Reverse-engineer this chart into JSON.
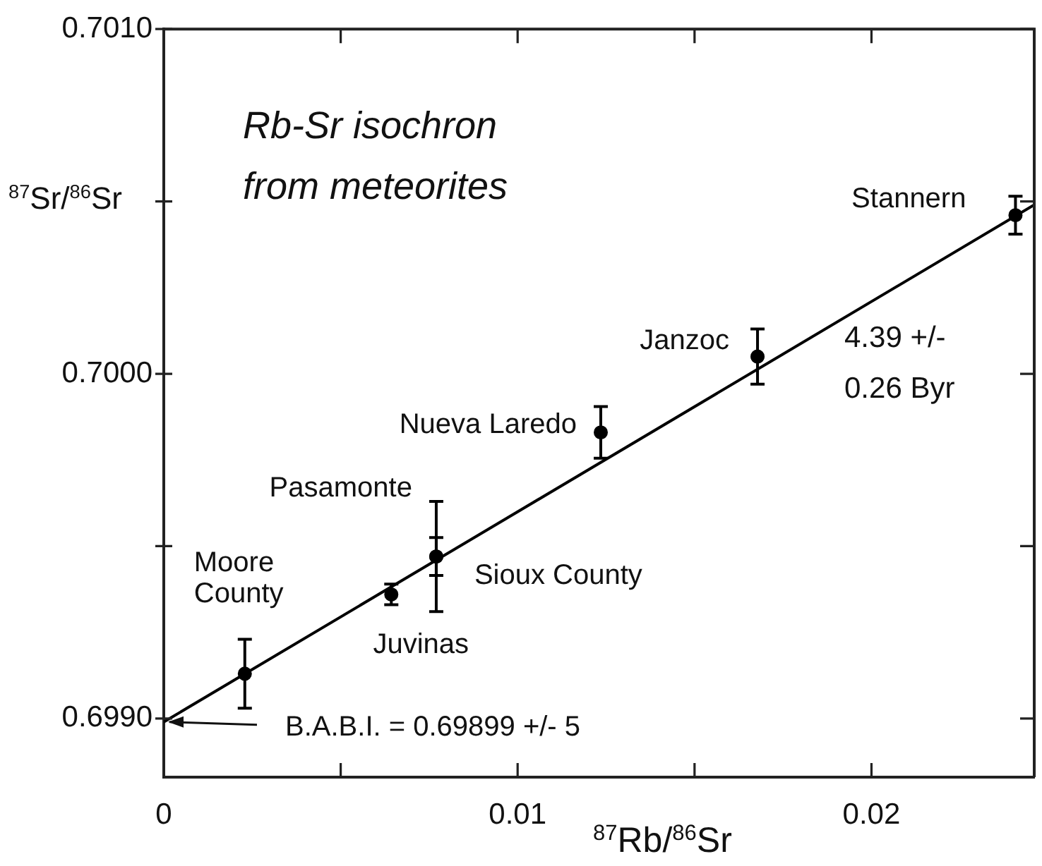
{
  "chart_data": {
    "type": "scatter",
    "title": "Rb-Sr isochron from meteorites",
    "xlabel": "$^{87}$Rb/$^{86}$Sr",
    "ylabel": "$^{87}$Sr/$^{86}$Sr",
    "xlim": [
      0,
      0.0246
    ],
    "ylim": [
      0.69883,
      0.701
    ],
    "xticks": [
      0,
      {
        "value": 0.005,
        "label": null
      },
      0.01,
      {
        "value": 0.015,
        "label": null
      },
      0.02
    ],
    "yticks": [
      {
        "value": 0.699,
        "label": "0.6990"
      },
      {
        "value": 0.6995,
        "label": null
      },
      {
        "value": 0.7,
        "label": "0.7000"
      },
      {
        "value": 0.7005,
        "label": null
      },
      {
        "value": 0.701,
        "label": "0.7010"
      }
    ],
    "grid": false,
    "legend": false,
    "marker": "circle",
    "series": [
      {
        "name": "Moore County",
        "color": "#000000",
        "x": [
          0.00229
        ],
        "values": [
          0.69913
        ],
        "errors": [
          0.0001
        ]
      },
      {
        "name": "Juvinas",
        "color": "#000000",
        "x": [
          0.00643
        ],
        "values": [
          0.69936
        ],
        "errors": [
          3e-05
        ]
      },
      {
        "name": "Pasamonte",
        "color": "#000000",
        "x": [
          0.0077
        ],
        "values": [
          0.69947
        ],
        "errors": [
          0.00016
        ]
      },
      {
        "name": "Sioux County",
        "color": "#000000",
        "x": [
          0.0077
        ],
        "values": [
          0.69947
        ],
        "errors": [
          5.5e-05
        ]
      },
      {
        "name": "Nueva Laredo",
        "color": "#000000",
        "x": [
          0.01235
        ],
        "values": [
          0.69983
        ],
        "errors": [
          7.5e-05
        ]
      },
      {
        "name": "Janzoc",
        "color": "#000000",
        "x": [
          0.01678
        ],
        "values": [
          0.70005
        ],
        "errors": [
          8e-05
        ]
      },
      {
        "name": "Stannern",
        "color": "#000000",
        "x": [
          0.02407
        ],
        "values": [
          0.70046
        ],
        "errors": [
          5.5e-05
        ]
      },
      {
        "type": "line",
        "color": "#000000",
        "x": [
          0,
          0.0246
        ],
        "values": [
          0.69899,
          0.70049
        ],
        "line_style": "solid",
        "marker": "none"
      }
    ],
    "annotations": [
      {
        "text": "B.A.B.I. = 0.69899 +/- 5",
        "x": 0,
        "y": 0.69899
      },
      "4.39 +/- 0.26 Byr"
    ]
  }
}
